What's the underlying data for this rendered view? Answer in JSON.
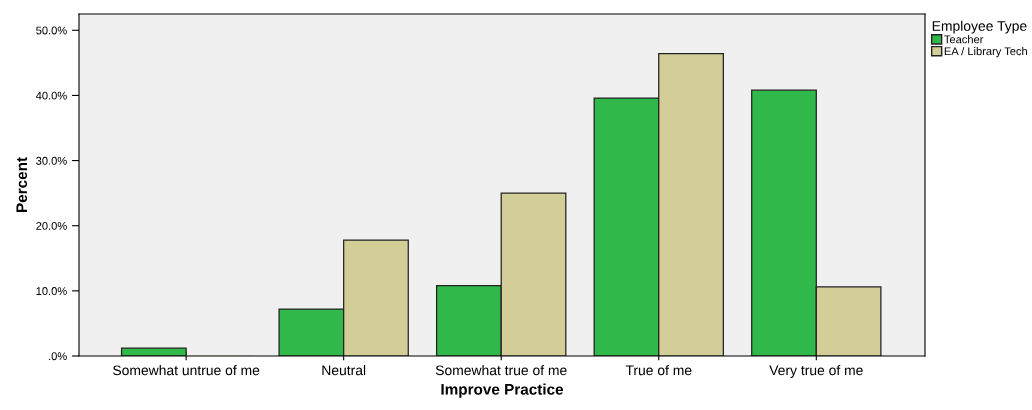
{
  "chart_data": {
    "type": "bar",
    "xlabel": "Improve Practice",
    "ylabel": "Percent",
    "legend_title": "Employee Type",
    "categories": [
      "Somewhat untrue of me",
      "Neutral",
      "Somewhat true of me",
      "True of me",
      "Very true of me"
    ],
    "series": [
      {
        "name": "Teacher",
        "color": "#30b84a",
        "values": [
          1.2,
          7.2,
          10.8,
          39.6,
          40.8
        ]
      },
      {
        "name": "EA / Library Tech",
        "color": "#d3ce98",
        "values": [
          0,
          17.8,
          25.0,
          46.4,
          10.6
        ]
      }
    ],
    "ylim": [
      0,
      52.5
    ],
    "yticks": [
      {
        "value": 0,
        "label": ".0%"
      },
      {
        "value": 10,
        "label": "10.0%"
      },
      {
        "value": 20,
        "label": "20.0%"
      },
      {
        "value": 30,
        "label": "30.0%"
      },
      {
        "value": 40,
        "label": "40.0%"
      },
      {
        "value": 50,
        "label": "50.0%"
      }
    ],
    "grid": false,
    "legend": "top right"
  }
}
